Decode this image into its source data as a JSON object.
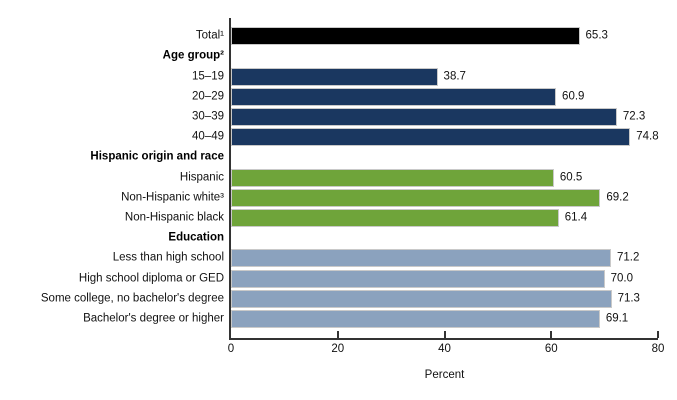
{
  "chart_data": {
    "type": "bar",
    "orientation": "horizontal",
    "title": "",
    "xlabel": "Percent",
    "xlim": [
      0,
      80
    ],
    "xticks": [
      0,
      20,
      40,
      60,
      80
    ],
    "grid": false,
    "legend": false,
    "palette": {
      "black": "#000000",
      "navy": "#1A3760",
      "green": "#6FA43A",
      "slate": "#8BA2BE"
    },
    "rows": [
      {
        "kind": "bar",
        "label": "Total¹",
        "value": 65.3,
        "color": "black"
      },
      {
        "kind": "header",
        "label": "Age group²"
      },
      {
        "kind": "bar",
        "label": "15–19",
        "value": 38.7,
        "color": "navy"
      },
      {
        "kind": "bar",
        "label": "20–29",
        "value": 60.9,
        "color": "navy"
      },
      {
        "kind": "bar",
        "label": "30–39",
        "value": 72.3,
        "color": "navy"
      },
      {
        "kind": "bar",
        "label": "40–49",
        "value": 74.8,
        "color": "navy"
      },
      {
        "kind": "header",
        "label": "Hispanic origin and race"
      },
      {
        "kind": "bar",
        "label": "Hispanic",
        "value": 60.5,
        "color": "green"
      },
      {
        "kind": "bar",
        "label": "Non-Hispanic white³",
        "value": 69.2,
        "color": "green"
      },
      {
        "kind": "bar",
        "label": "Non-Hispanic black",
        "value": 61.4,
        "color": "green"
      },
      {
        "kind": "header",
        "label": "Education"
      },
      {
        "kind": "bar",
        "label": "Less than high school",
        "value": 71.2,
        "color": "slate"
      },
      {
        "kind": "bar",
        "label": "High school diploma or GED",
        "value": 70.0,
        "color": "slate"
      },
      {
        "kind": "bar",
        "label": "Some college, no bachelor's degree",
        "value": 71.3,
        "color": "slate"
      },
      {
        "kind": "bar",
        "label": "Bachelor's degree or higher",
        "value": 69.1,
        "color": "slate"
      }
    ]
  }
}
